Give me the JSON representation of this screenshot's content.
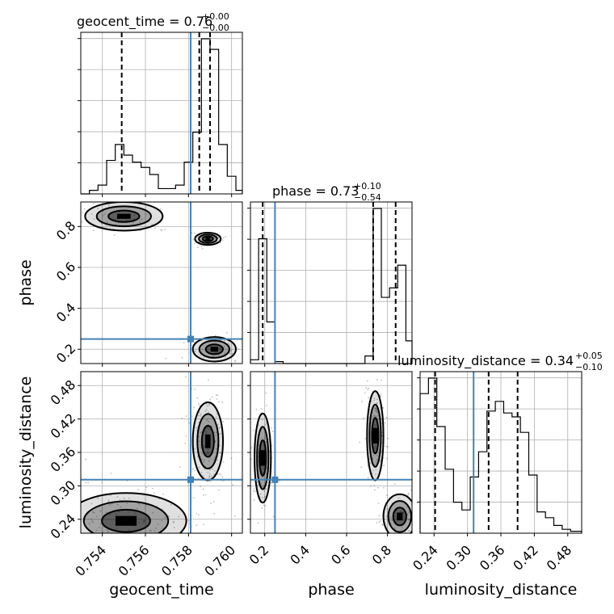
{
  "chart_data": {
    "type": "corner",
    "parameters": [
      {
        "name": "geocent_time",
        "label": "geocent_time",
        "range": [
          0.753,
          0.7605
        ],
        "ticks": [
          0.754,
          0.756,
          0.758,
          0.76
        ],
        "tick_labels": [
          "0.754",
          "0.756",
          "0.758",
          "0.760"
        ],
        "title": "geocent_time = 0.76",
        "title_plus": "+0.00",
        "title_minus": "−0.00",
        "quantiles": [
          0.7549,
          0.7585,
          0.759
        ],
        "truth": 0.7581,
        "hist_edges": [
          0.753,
          0.7534,
          0.7538,
          0.7542,
          0.7546,
          0.755,
          0.7554,
          0.7558,
          0.7562,
          0.7566,
          0.757,
          0.7574,
          0.7578,
          0.7582,
          0.7586,
          0.759,
          0.7594,
          0.7598,
          0.7602,
          0.7605
        ],
        "hist_counts": [
          0,
          2,
          5,
          19,
          28,
          22,
          18,
          15,
          11,
          3,
          3,
          5,
          18,
          35,
          88,
          82,
          28,
          10,
          2
        ]
      },
      {
        "name": "phase",
        "label": "phase",
        "range": [
          0.13,
          0.92
        ],
        "ticks": [
          0.2,
          0.4,
          0.6,
          0.8
        ],
        "tick_labels": [
          "0.2",
          "0.4",
          "0.6",
          "0.8"
        ],
        "title": "phase = 0.73",
        "title_plus": "+0.10",
        "title_minus": "−0.54",
        "quantiles": [
          0.19,
          0.73,
          0.84
        ],
        "truth": 0.25,
        "hist_edges": [
          0.13,
          0.17,
          0.21,
          0.25,
          0.29,
          0.33,
          0.37,
          0.41,
          0.45,
          0.49,
          0.53,
          0.57,
          0.61,
          0.65,
          0.69,
          0.73,
          0.77,
          0.81,
          0.85,
          0.89,
          0.92
        ],
        "hist_counts": [
          2,
          66,
          22,
          1,
          0,
          0,
          0,
          0,
          0,
          0,
          0,
          0,
          0,
          0,
          4,
          82,
          35,
          40,
          52,
          12
        ]
      },
      {
        "name": "luminosity_distance",
        "label": "luminosity_distance",
        "range": [
          0.215,
          0.505
        ],
        "ticks": [
          0.24,
          0.3,
          0.36,
          0.42,
          0.48
        ],
        "tick_labels": [
          "0.24",
          "0.30",
          "0.36",
          "0.42",
          "0.48"
        ],
        "title": "luminosity_distance = 0.34",
        "title_plus": "+0.05",
        "title_minus": "−0.10",
        "quantiles": [
          0.242,
          0.338,
          0.39
        ],
        "truth": 0.311,
        "hist_edges": [
          0.215,
          0.23,
          0.245,
          0.26,
          0.275,
          0.29,
          0.305,
          0.32,
          0.335,
          0.35,
          0.365,
          0.38,
          0.395,
          0.41,
          0.425,
          0.44,
          0.455,
          0.47,
          0.485,
          0.505
        ],
        "hist_counts": [
          72,
          80,
          55,
          33,
          16,
          12,
          29,
          42,
          63,
          68,
          62,
          60,
          52,
          30,
          11,
          8,
          4,
          2,
          1
        ]
      }
    ],
    "clusters_2d": [
      {
        "cx": 0.7551,
        "cy": 0.2372,
        "sx": 0.0014,
        "sy": 0.025,
        "n": 180
      },
      {
        "cx": 0.7589,
        "cy": 0.38,
        "sx": 0.00035,
        "sy": 0.035,
        "n": 170
      },
      {
        "cx": 0.755,
        "cy": 0.85,
        "sx": 0.0009,
        "sy": 0.035,
        "n": 60
      },
      {
        "cx": 0.7589,
        "cy": 0.74,
        "sx": 0.0003,
        "sy": 0.015,
        "n": 60
      },
      {
        "cx": 0.7592,
        "cy": 0.2,
        "sx": 0.0005,
        "sy": 0.03,
        "n": 60
      },
      {
        "cx": 0.19,
        "cy": 0.35,
        "sx": 0.02,
        "sy": 0.04,
        "n": 110
      },
      {
        "cx": 0.74,
        "cy": 0.39,
        "sx": 0.02,
        "sy": 0.04,
        "n": 130
      },
      {
        "cx": 0.86,
        "cy": 0.245,
        "sx": 0.04,
        "sy": 0.02,
        "n": 80
      }
    ],
    "colors": {
      "truth": "#4682b4",
      "line": "#000000",
      "grid": "#b0b0b0"
    }
  }
}
